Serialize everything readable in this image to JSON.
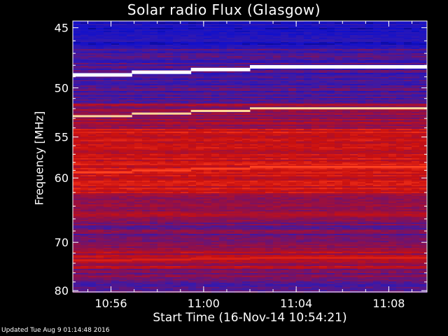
{
  "chart_data": {
    "type": "heatmap",
    "title": "Solar radio Flux (Glasgow)",
    "xlabel": "Start Time (16-Nov-14 10:54:21)",
    "ylabel": "Frequency [MHz]",
    "footer": "Updated Tue Aug  9 01:14:48 2016",
    "x_tick_labels": [
      "10:56",
      "11:00",
      "11:04",
      "11:08"
    ],
    "x_tick_minutes": [
      1.65,
      5.65,
      9.65,
      13.65
    ],
    "x_range_minutes": [
      0,
      15.3
    ],
    "y_tick_labels": [
      "45",
      "50",
      "55",
      "60",
      "70",
      "80"
    ],
    "y_tick_values": [
      45,
      50,
      55,
      60,
      70,
      80
    ],
    "y_range": [
      44.5,
      80.3
    ],
    "y_scale": "reciprocal",
    "colormap": [
      "#000033",
      "#1010cc",
      "#3a1aa8",
      "#8a1050",
      "#c81010",
      "#ff3a1a",
      "#ffe0a0",
      "#ffffff"
    ],
    "bright_lines": [
      {
        "freq_start": 48.8,
        "freq_end": 48.1,
        "intensity": 1.0
      },
      {
        "freq_start": 52.8,
        "freq_end": 52.0,
        "intensity": 0.85
      },
      {
        "freq_start": 59.3,
        "freq_end": 58.6,
        "intensity": 0.72
      },
      {
        "freq_start": 73.5,
        "freq_end": 73.0,
        "intensity": 0.62
      }
    ]
  }
}
